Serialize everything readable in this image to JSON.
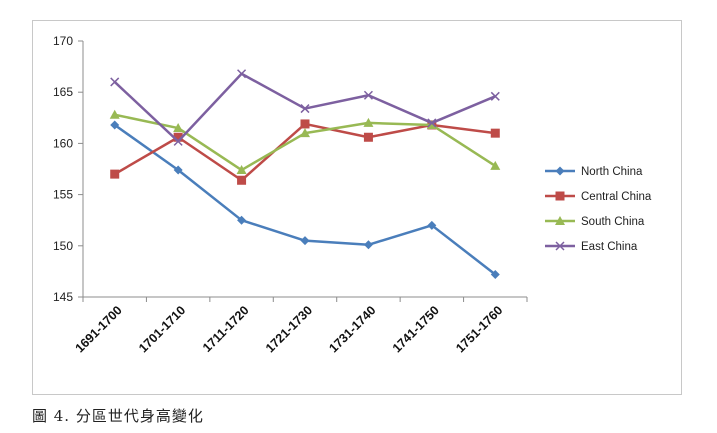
{
  "chart_data": {
    "type": "line",
    "categories": [
      "1691-1700",
      "1701-1710",
      "1711-1720",
      "1721-1730",
      "1731-1740",
      "1741-1750",
      "1751-1760"
    ],
    "ylim": [
      145,
      170
    ],
    "yticks": [
      145,
      150,
      155,
      160,
      165,
      170
    ],
    "grid": false,
    "legend_position": "right",
    "series": [
      {
        "name": "North China",
        "color": "#4a7ebb",
        "marker": "diamond",
        "values": [
          161.8,
          157.4,
          152.5,
          150.5,
          150.1,
          152.0,
          147.2
        ]
      },
      {
        "name": "Central China",
        "color": "#be4b48",
        "marker": "square",
        "values": [
          157.0,
          160.6,
          156.4,
          161.9,
          160.6,
          161.8,
          161.0
        ]
      },
      {
        "name": "South China",
        "color": "#98b954",
        "marker": "triangle",
        "values": [
          162.8,
          161.5,
          157.4,
          161.0,
          162.0,
          161.8,
          157.8
        ]
      },
      {
        "name": "East China",
        "color": "#7d60a0",
        "marker": "x",
        "values": [
          166.0,
          160.2,
          166.8,
          163.4,
          164.7,
          162.0,
          164.6
        ]
      }
    ]
  },
  "caption": "圖 4.  分區世代身高變化"
}
